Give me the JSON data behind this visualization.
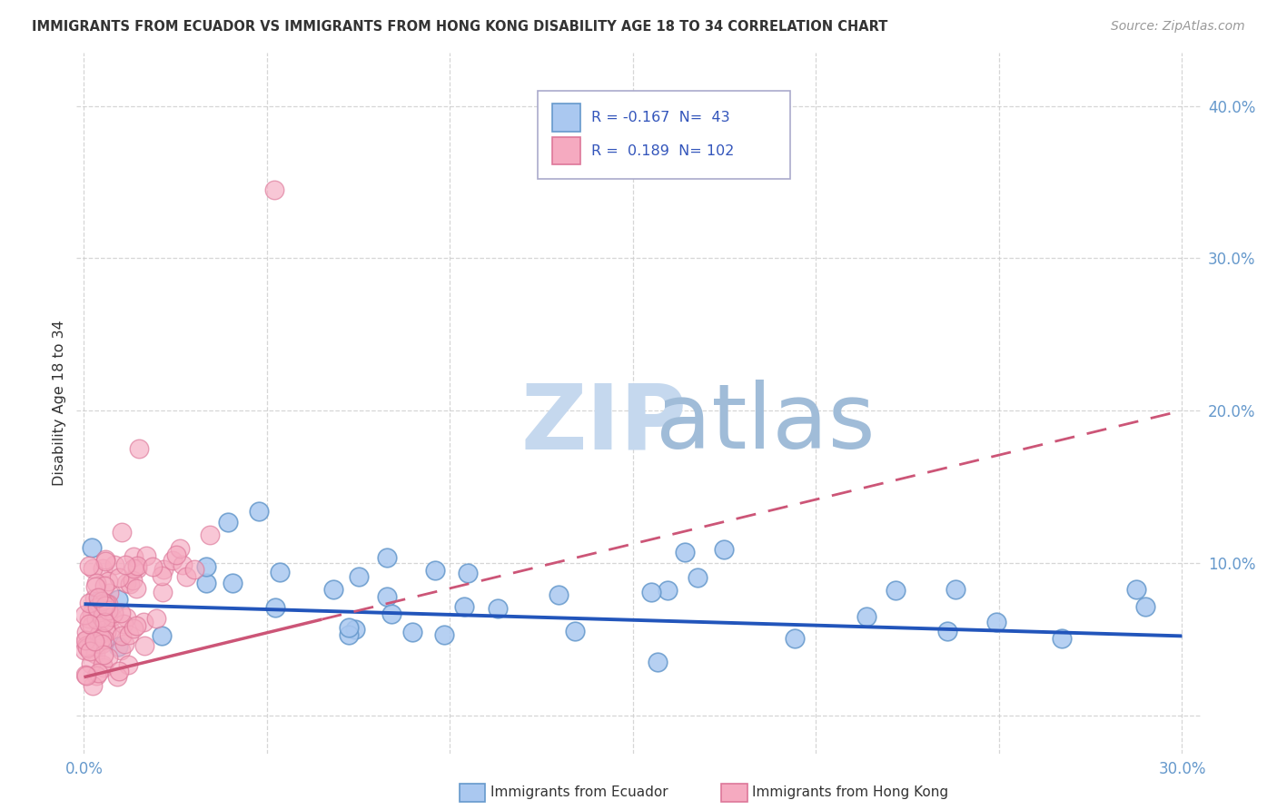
{
  "title": "IMMIGRANTS FROM ECUADOR VS IMMIGRANTS FROM HONG KONG DISABILITY AGE 18 TO 34 CORRELATION CHART",
  "source": "Source: ZipAtlas.com",
  "ylabel": "Disability Age 18 to 34",
  "xlim": [
    -0.002,
    0.305
  ],
  "ylim": [
    -0.025,
    0.435
  ],
  "xtick_vals": [
    0.0,
    0.05,
    0.1,
    0.15,
    0.2,
    0.25,
    0.3
  ],
  "xtick_labels": [
    "0.0%",
    "",
    "",
    "",
    "",
    "",
    "30.0%"
  ],
  "ytick_vals": [
    0.0,
    0.1,
    0.2,
    0.3,
    0.4
  ],
  "ytick_labels": [
    "",
    "10.0%",
    "20.0%",
    "30.0%",
    "40.0%"
  ],
  "ecuador_color": "#aac8f0",
  "ecuador_edge": "#6699cc",
  "hk_color": "#f5aac0",
  "hk_edge": "#dd7799",
  "ecuador_line_color": "#2255bb",
  "hk_line_color": "#cc5577",
  "ecuador_R": -0.167,
  "ecuador_N": 43,
  "hk_R": 0.189,
  "hk_N": 102,
  "watermark_zip": "ZIP",
  "watermark_atlas": "atlas",
  "legend_ecuador": "Immigrants from Ecuador",
  "legend_hk": "Immigrants from Hong Kong",
  "background_color": "#ffffff",
  "grid_color": "#cccccc",
  "tick_color": "#6699cc",
  "title_color": "#333333",
  "source_color": "#999999"
}
